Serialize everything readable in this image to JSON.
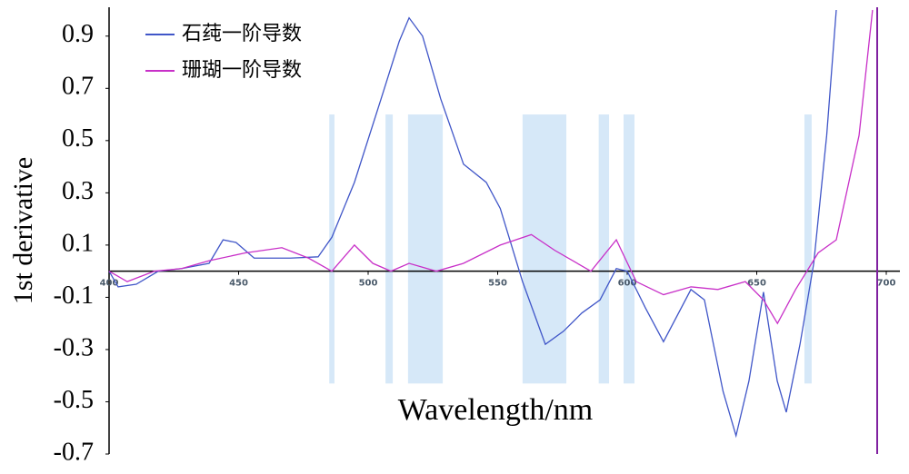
{
  "chart_data": {
    "type": "line",
    "xlabel": "Wavelength/nm",
    "ylabel": "1st derivative",
    "xlim": [
      400,
      700
    ],
    "ylim": [
      -0.7,
      1.0
    ],
    "xticks": [
      400,
      450,
      500,
      550,
      600,
      650,
      700
    ],
    "yticks": [
      0.9,
      0.7,
      0.5,
      0.3,
      0.1,
      -0.1,
      -0.3,
      -0.5,
      -0.7
    ],
    "bands": [
      [
        485,
        487
      ],
      [
        506.7,
        509.5
      ],
      [
        515.4,
        528.8
      ],
      [
        559.6,
        576.5
      ],
      [
        589,
        593
      ],
      [
        598.6,
        602.8
      ],
      [
        668.4,
        671.2
      ]
    ],
    "band_color": "#d6e8f8",
    "band_range": [
      -0.43,
      0.6
    ],
    "series": [
      {
        "name": "石莼一阶导数",
        "color": "#4056c8",
        "x": [
          400,
          403.5,
          410.5,
          419,
          428,
          438.6,
          444,
          449,
          456,
          470,
          480.7,
          486,
          494.7,
          505,
          512,
          515.8,
          521,
          528,
          536.8,
          545.6,
          551,
          559.6,
          568.4,
          575.4,
          582.5,
          589.5,
          595.8,
          600,
          607,
          614,
          624.6,
          629.8,
          637,
          642,
          647,
          652.6,
          657.9,
          661.4,
          666.7,
          672,
          677,
          680.7
        ],
        "values": [
          0,
          -0.06,
          -0.05,
          0,
          0.01,
          0.03,
          0.12,
          0.11,
          0.05,
          0.05,
          0.055,
          0.13,
          0.34,
          0.66,
          0.88,
          0.97,
          0.9,
          0.66,
          0.41,
          0.34,
          0.24,
          -0.04,
          -0.28,
          -0.23,
          -0.16,
          -0.11,
          0.01,
          0,
          -0.14,
          -0.27,
          -0.07,
          -0.11,
          -0.46,
          -0.63,
          -0.42,
          -0.08,
          -0.42,
          -0.54,
          -0.28,
          0.03,
          0.52,
          1.0
        ]
      },
      {
        "name": "珊瑚一阶导数",
        "color": "#c830c8",
        "x": [
          400,
          407,
          417.5,
          428,
          438.6,
          452.6,
          466.7,
          477,
          486,
          494.7,
          501.8,
          508.8,
          515.8,
          526.3,
          536.8,
          551,
          563,
          572,
          586,
          595.8,
          603.5,
          614,
          624.6,
          635,
          645.6,
          652.6,
          658,
          665,
          673.7,
          680.7,
          689.5,
          694.7
        ],
        "values": [
          0,
          -0.04,
          0,
          0.01,
          0.04,
          0.07,
          0.09,
          0.05,
          0,
          0.1,
          0.03,
          0,
          0.03,
          0,
          0.03,
          0.1,
          0.14,
          0.08,
          0,
          0.12,
          -0.04,
          -0.09,
          -0.06,
          -0.07,
          -0.04,
          -0.11,
          -0.2,
          -0.07,
          0.07,
          0.12,
          0.52,
          1.0
        ]
      }
    ]
  }
}
